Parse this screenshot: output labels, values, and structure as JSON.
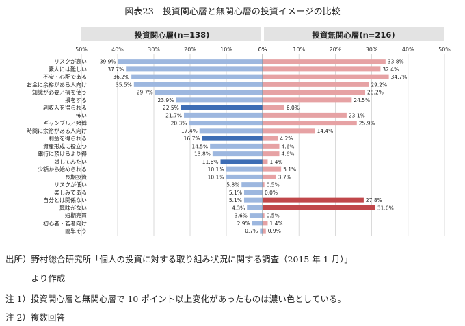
{
  "title": "図表23　投資関心層と無関心層の投資イメージの比較",
  "chart_data": [
    {
      "type": "bar",
      "title": "投資関心層(n=138)",
      "orientation": "horizontal-left",
      "xlim": [
        0,
        50
      ],
      "ticks": [
        "50%",
        "40%",
        "30%",
        "20%",
        "10%",
        "0%"
      ],
      "grid": true,
      "categories": [
        "リスクが高い",
        "素人には難しい",
        "不安・心配である",
        "お金に余裕がある人向け",
        "知識が必要／損を使う",
        "損をする",
        "副収入を得られる",
        "怖い",
        "ギャンブル／賭博",
        "時間に余裕がある人向け",
        "利益を得られる",
        "資産形成に役立つ",
        "銀行に預けるより得",
        "試してみたい",
        "少額から始められる",
        "長期投資",
        "リスクが低い",
        "楽しみである",
        "自分とは関係ない",
        "興味がない",
        "短期売買",
        "初心者・若者向け",
        "簡単そう"
      ],
      "values": [
        39.9,
        37.7,
        36.2,
        35.5,
        29.7,
        23.9,
        22.5,
        21.7,
        20.3,
        17.4,
        16.7,
        14.5,
        13.8,
        11.6,
        10.1,
        10.1,
        5.8,
        5.1,
        5.1,
        4.3,
        3.6,
        2.9,
        0.7
      ],
      "value_labels": [
        "39.9%",
        "37.7%",
        "36.2%",
        "35.5%",
        "29.7%",
        "23.9%",
        "22.5%",
        "21.7%",
        "20.3%",
        "17.4%",
        "16.7%",
        "14.5%",
        "13.8%",
        "11.6%",
        "10.1%",
        "10.1%",
        "5.8%",
        "5.1%",
        "5.1%",
        "4.3%",
        "3.6%",
        "2.9%",
        "0.7%"
      ],
      "highlight": [
        false,
        false,
        false,
        false,
        false,
        false,
        true,
        false,
        false,
        false,
        true,
        false,
        false,
        true,
        false,
        false,
        false,
        false,
        false,
        false,
        false,
        false,
        false
      ],
      "colors": {
        "normal": "#9db7df",
        "dark": "#3d6db5",
        "header": "#e3e3e3"
      }
    },
    {
      "type": "bar",
      "title": "投資無関心層(n=216)",
      "orientation": "horizontal-right",
      "xlim": [
        0,
        50
      ],
      "ticks": [
        "0%",
        "10%",
        "20%",
        "30%",
        "40%",
        "50%"
      ],
      "grid": true,
      "categories": [
        "リスクが高い",
        "素人には難しい",
        "不安・心配である",
        "お金に余裕がある人向け",
        "知識が必要／損を使う",
        "損をする",
        "副収入を得られる",
        "怖い",
        "ギャンブル／賭博",
        "時間に余裕がある人向け",
        "利益を得られる",
        "資産形成に役立つ",
        "銀行に預けるより得",
        "試してみたい",
        "少額から始められる",
        "長期投資",
        "リスクが低い",
        "楽しみである",
        "自分とは関係ない",
        "興味がない",
        "短期売買",
        "初心者・若者向け",
        "簡単そう"
      ],
      "values": [
        33.8,
        32.4,
        34.7,
        29.2,
        28.2,
        24.5,
        6.0,
        23.1,
        25.9,
        14.4,
        4.2,
        4.6,
        4.6,
        1.4,
        5.1,
        3.7,
        0.5,
        0.0,
        27.8,
        31.0,
        0.5,
        1.4,
        0.9
      ],
      "value_labels": [
        "33.8%",
        "32.4%",
        "34.7%",
        "29.2%",
        "28.2%",
        "24.5%",
        "6.0%",
        "23.1%",
        "25.9%",
        "14.4%",
        "4.2%",
        "4.6%",
        "4.6%",
        "1.4%",
        "5.1%",
        "3.7%",
        "0.5%",
        "0.0%",
        "27.8%",
        "31.0%",
        "0.5%",
        "1.4%",
        "0.9%"
      ],
      "highlight": [
        false,
        false,
        false,
        false,
        false,
        false,
        false,
        false,
        false,
        false,
        false,
        false,
        false,
        false,
        false,
        false,
        false,
        false,
        true,
        true,
        false,
        false,
        false
      ],
      "colors": {
        "normal": "#e6a2a4",
        "dark": "#c0474a",
        "header": "#e3e3e3"
      }
    }
  ],
  "notes": {
    "source_1": "出所）野村総合研究所「個人の投資に対する取り組み状況に関する調査（2015 年 1 月）」",
    "source_2": "　　　より作成",
    "note_1": "注 1）投資関心層と無関心層で 10 ポイント以上変化があったものは濃い色としている。",
    "note_2": "注 2）複数回答"
  }
}
